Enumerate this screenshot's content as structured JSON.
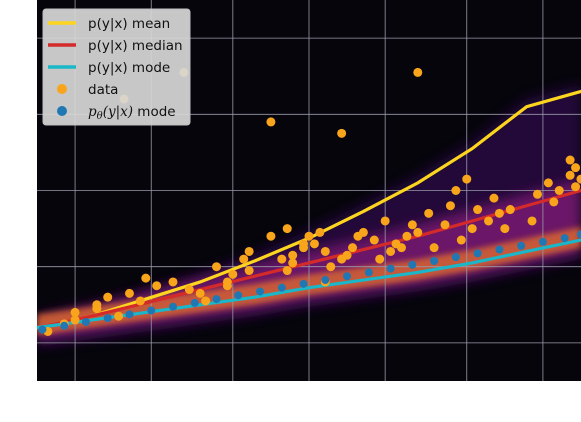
{
  "chart_data": {
    "type": "scatter",
    "title": "",
    "xlabel": "",
    "ylabel": "",
    "xlim": [
      0,
      10
    ],
    "ylim": [
      0,
      10
    ],
    "grid": true,
    "background": "#06050c",
    "legend_position": "top-left",
    "series": [
      {
        "name": "p(y|x) mean",
        "kind": "line",
        "color": "#fdd51f",
        "x": [
          0,
          1,
          2,
          3,
          4,
          5,
          6,
          7,
          8,
          9,
          10
        ],
        "y": [
          1.4,
          1.7,
          2.15,
          2.6,
          3.15,
          3.75,
          4.45,
          5.2,
          6.1,
          7.2,
          7.6
        ]
      },
      {
        "name": "p(y|x) median",
        "kind": "line",
        "color": "#d42a2a",
        "x": [
          0,
          1,
          2,
          3,
          4,
          5,
          6,
          7,
          8,
          9,
          10
        ],
        "y": [
          1.4,
          1.7,
          2.05,
          2.4,
          2.75,
          3.1,
          3.45,
          3.8,
          4.2,
          4.6,
          5.0
        ]
      },
      {
        "name": "p(y|x) mode",
        "kind": "line",
        "color": "#1ab7c9",
        "x": [
          0,
          1,
          2,
          3,
          4,
          5,
          6,
          7,
          8,
          9,
          10
        ],
        "y": [
          1.4,
          1.6,
          1.8,
          2.0,
          2.2,
          2.45,
          2.65,
          2.85,
          3.1,
          3.4,
          3.7
        ]
      },
      {
        "name": "data",
        "kind": "scatter",
        "color": "#f9a51b",
        "x": [
          0.2,
          0.5,
          0.7,
          0.7,
          1.1,
          1.1,
          1.3,
          1.5,
          1.7,
          1.9,
          2.0,
          2.2,
          2.5,
          2.8,
          3.0,
          3.1,
          3.3,
          3.5,
          3.5,
          3.6,
          3.8,
          3.9,
          3.9,
          4.3,
          4.5,
          4.6,
          4.6,
          4.7,
          4.7,
          4.9,
          4.9,
          5.0,
          5.1,
          5.2,
          5.3,
          5.3,
          5.4,
          5.6,
          5.7,
          5.8,
          5.9,
          6.0,
          6.2,
          6.3,
          6.4,
          6.5,
          6.6,
          6.7,
          6.8,
          6.9,
          7.0,
          7.2,
          7.3,
          7.5,
          7.6,
          7.7,
          7.8,
          7.9,
          8.0,
          8.1,
          8.3,
          8.4,
          8.5,
          8.6,
          8.7,
          9.1,
          9.2,
          9.4,
          9.5,
          9.6,
          9.8,
          9.9,
          10.0,
          9.9,
          9.8,
          7.0,
          5.6,
          4.3,
          2.7,
          1.6
        ],
        "y": [
          1.3,
          1.5,
          1.6,
          1.8,
          1.9,
          2.0,
          2.2,
          1.7,
          2.3,
          2.1,
          2.7,
          2.5,
          2.6,
          2.4,
          2.3,
          2.1,
          3.0,
          2.5,
          2.6,
          2.8,
          3.2,
          3.4,
          2.9,
          3.8,
          3.2,
          4.0,
          2.9,
          3.1,
          3.3,
          3.5,
          3.6,
          3.8,
          3.6,
          3.9,
          2.6,
          3.4,
          3.0,
          3.2,
          3.3,
          3.5,
          3.8,
          3.9,
          3.7,
          3.2,
          4.2,
          3.4,
          3.6,
          3.5,
          3.8,
          4.1,
          3.9,
          4.4,
          3.5,
          4.1,
          4.6,
          5.0,
          3.7,
          5.3,
          4.0,
          4.5,
          4.2,
          4.8,
          4.4,
          4.0,
          4.5,
          4.2,
          4.9,
          5.2,
          4.7,
          5.0,
          5.4,
          5.6,
          5.3,
          5.1,
          5.8,
          8.1,
          6.5,
          6.8,
          8.1,
          7.4
        ]
      },
      {
        "name": "p_θ(y|x) mode",
        "kind": "scatter",
        "color": "#1f77b4",
        "x": [
          0.1,
          0.5,
          0.9,
          1.3,
          1.7,
          2.1,
          2.5,
          2.9,
          3.3,
          3.7,
          4.1,
          4.5,
          4.9,
          5.3,
          5.7,
          6.1,
          6.5,
          6.9,
          7.3,
          7.7,
          8.1,
          8.5,
          8.9,
          9.3,
          9.7,
          10.0
        ],
        "y": [
          1.35,
          1.45,
          1.55,
          1.65,
          1.75,
          1.85,
          1.95,
          2.05,
          2.15,
          2.25,
          2.35,
          2.45,
          2.55,
          2.65,
          2.75,
          2.85,
          2.95,
          3.05,
          3.15,
          3.25,
          3.35,
          3.45,
          3.55,
          3.65,
          3.75,
          3.85
        ]
      }
    ]
  },
  "legend": {
    "items": [
      {
        "label": "p(y|x) mean",
        "type": "line",
        "color": "#fdd51f"
      },
      {
        "label": "p(y|x) median",
        "type": "line",
        "color": "#d42a2a"
      },
      {
        "label": "p(y|x) mode",
        "type": "line",
        "color": "#1ab7c9"
      },
      {
        "label": "data",
        "type": "marker",
        "color": "#f9a51b"
      },
      {
        "label": "p_θ(y|x) mode",
        "type": "marker",
        "color": "#1f77b4",
        "math": true
      }
    ]
  }
}
